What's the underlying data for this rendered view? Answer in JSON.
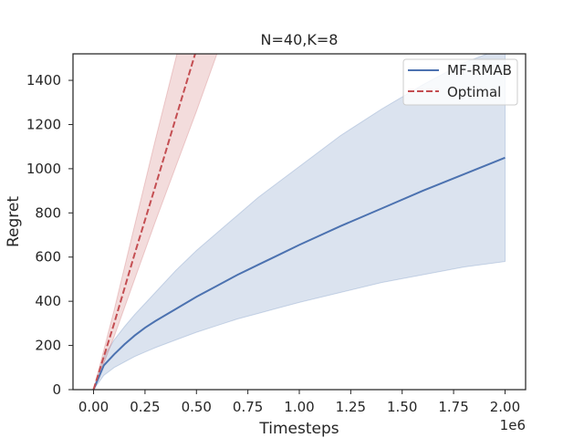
{
  "chart_data": {
    "type": "line",
    "title": "N=40,K=8",
    "xlabel": "Timesteps",
    "ylabel": "Regret",
    "x_offset_label": "1e6",
    "xlim": [
      -0.1,
      2.1
    ],
    "ylim": [
      0,
      1520
    ],
    "xticks": [
      0.0,
      0.25,
      0.5,
      0.75,
      1.0,
      1.25,
      1.5,
      1.75,
      2.0
    ],
    "xtick_labels": [
      "0.00",
      "0.25",
      "0.50",
      "0.75",
      "1.00",
      "1.25",
      "1.50",
      "1.75",
      "2.00"
    ],
    "yticks": [
      0,
      200,
      400,
      600,
      800,
      1000,
      1200,
      1400
    ],
    "ytick_labels": [
      "0",
      "200",
      "400",
      "600",
      "800",
      "1000",
      "1200",
      "1400"
    ],
    "grid": false,
    "legend_position": "top-right",
    "series": [
      {
        "name": "MF-RMAB",
        "color": "#4c72b0",
        "style": "solid",
        "x": [
          0.0,
          0.05,
          0.1,
          0.15,
          0.2,
          0.25,
          0.3,
          0.4,
          0.5,
          0.6,
          0.7,
          0.8,
          0.9,
          1.0,
          1.2,
          1.4,
          1.6,
          1.8,
          2.0
        ],
        "y": [
          0,
          110,
          160,
          205,
          245,
          280,
          310,
          365,
          420,
          470,
          520,
          565,
          610,
          655,
          740,
          820,
          900,
          975,
          1050
        ],
        "lower": [
          0,
          65,
          100,
          125,
          150,
          170,
          190,
          225,
          260,
          290,
          320,
          345,
          370,
          395,
          440,
          485,
          520,
          555,
          580
        ],
        "upper": [
          0,
          150,
          225,
          285,
          340,
          390,
          440,
          540,
          630,
          710,
          790,
          870,
          940,
          1010,
          1150,
          1270,
          1380,
          1480,
          1550
        ]
      },
      {
        "name": "Optimal",
        "color": "#c44e52",
        "style": "dashed",
        "x": [
          0.0,
          0.1,
          0.2,
          0.3,
          0.4,
          0.5,
          0.6
        ],
        "y": [
          0,
          300,
          615,
          920,
          1230,
          1540,
          1850
        ],
        "lower": [
          0,
          240,
          500,
          760,
          1010,
          1260,
          1520
        ],
        "upper": [
          0,
          360,
          745,
          1130,
          1500,
          1870,
          2240
        ]
      }
    ]
  }
}
